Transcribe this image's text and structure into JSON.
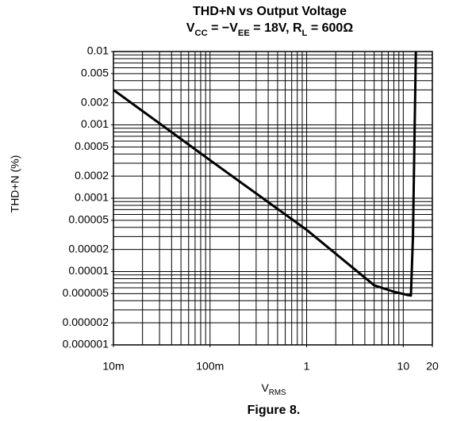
{
  "chart_data": {
    "type": "line",
    "title": "THD+N vs Output Voltage",
    "subtitle": [
      {
        "text": "V"
      },
      {
        "text": "CC",
        "sub": true
      },
      {
        "text": " = −V"
      },
      {
        "text": "EE",
        "sub": true
      },
      {
        "text": " = 18V, R"
      },
      {
        "text": "L",
        "sub": true
      },
      {
        "text": " = 600Ω"
      }
    ],
    "xlabel": [
      {
        "text": "V"
      },
      {
        "text": "RMS",
        "sub": true
      }
    ],
    "ylabel": "THD+N (%)",
    "caption": "Figure 8.",
    "xlog": true,
    "ylog": true,
    "grid": true,
    "xlim": [
      0.01,
      20
    ],
    "ylim": [
      1e-06,
      0.01
    ],
    "xticks": [
      {
        "value": 0.01,
        "label": "10m"
      },
      {
        "value": 0.1,
        "label": "100m"
      },
      1,
      10,
      20
    ],
    "yticks": [
      0.01,
      0.005,
      0.002,
      0.001,
      0.0005,
      0.0002,
      0.0001,
      5e-05,
      2e-05,
      1e-05,
      5e-06,
      2e-06,
      1e-06
    ],
    "xgrid": [
      0.01,
      0.02,
      0.03,
      0.04,
      0.05,
      0.06,
      0.07,
      0.08,
      0.09,
      0.1,
      0.2,
      0.3,
      0.4,
      0.5,
      0.6,
      0.7,
      0.8,
      0.9,
      1,
      2,
      3,
      4,
      5,
      6,
      7,
      8,
      9,
      10,
      20
    ],
    "ygrid": [
      0.01,
      0.009,
      0.008,
      0.007,
      0.006,
      0.005,
      0.004,
      0.003,
      0.002,
      0.001,
      0.0009,
      0.0008,
      0.0007,
      0.0006,
      0.0005,
      0.0004,
      0.0003,
      0.0002,
      0.0001,
      9e-05,
      8e-05,
      7e-05,
      6e-05,
      5e-05,
      4e-05,
      3e-05,
      2e-05,
      1e-05,
      9e-06,
      8e-06,
      7e-06,
      6e-06,
      5e-06,
      4e-06,
      3e-06,
      2e-06,
      1e-06
    ],
    "series": [
      {
        "color": "#000000",
        "x": [
          0.01,
          0.1,
          1,
          5,
          8,
          11,
          12,
          12.6,
          13.5
        ],
        "values": [
          0.003,
          0.00033,
          3.7e-05,
          6.5e-06,
          5.3e-06,
          4.8e-06,
          4.7e-06,
          3e-05,
          0.01
        ]
      }
    ]
  }
}
